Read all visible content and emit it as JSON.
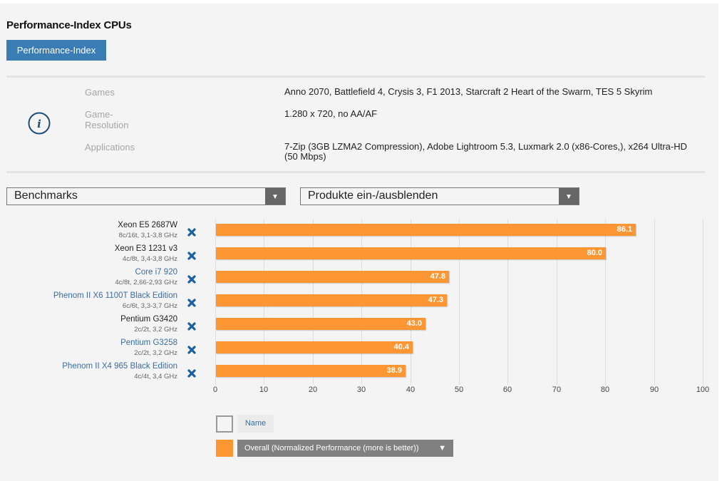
{
  "header": {
    "title": "Performance-Index CPUs",
    "tab_button": "Performance-Index"
  },
  "info": {
    "icon": "info-icon",
    "rows": [
      {
        "label": "Games",
        "value": "Anno 2070, Battlefield 4, Crysis 3, F1 2013, Starcraft 2 Heart of the Swarm, TES 5 Skyrim"
      },
      {
        "label": "Game-\nResolution",
        "label_line1": "Game-",
        "label_line2": "Resolution",
        "value": "1.280 x 720, no AA/AF"
      },
      {
        "label": "Applications",
        "value": "7-Zip (3GB LZMA2 Compression), Adobe Lightroom 5.3, Luxmark 2.0 (x86-Cores,), x264 Ultra-HD (50 Mbps)"
      }
    ]
  },
  "filters": {
    "benchmarks": {
      "selected": "Benchmarks",
      "icon": "triangle-down-icon"
    },
    "products": {
      "selected": "Produkte ein-/ausblenden",
      "icon": "triangle-down-icon"
    }
  },
  "products": [
    {
      "name": "Xeon E5 2687W",
      "spec": "8c/16t, 3,1-3,8 GHz",
      "link": false
    },
    {
      "name": "Xeon E3 1231 v3",
      "spec": "4c/8t, 3,4-3,8 GHz",
      "link": false
    },
    {
      "name": "Core i7 920",
      "spec": "4c/8t, 2,66-2,93 GHz",
      "link": true
    },
    {
      "name": "Phenom II X6 1100T Black Edition",
      "spec": "6c/6t, 3,3-3,7 GHz",
      "link": true
    },
    {
      "name": "Pentium G3420",
      "spec": "2c/2t, 3,2 GHz",
      "link": false
    },
    {
      "name": "Pentium G3258",
      "spec": "2c/2t, 3,2 GHz",
      "link": true
    },
    {
      "name": "Phenom II X4 965 Black Edition",
      "spec": "4c/4t, 3,4 GHz",
      "link": true
    }
  ],
  "remove_icon": "close-x-icon",
  "colors": {
    "bar": "#fd9633",
    "accent_button": "#3a7db5",
    "link": "#3a6ea5",
    "remove_icon": "#1a5fa0",
    "info_icon": "#1f4e79"
  },
  "legend": {
    "name_label": "Name",
    "series_label": "Overall (Normalized Performance (more is better))",
    "series_arrow": "▼"
  },
  "chart_data": {
    "type": "bar",
    "orientation": "horizontal",
    "title": "",
    "categories": [
      "Xeon E5 2687W",
      "Xeon E3 1231 v3",
      "Core i7 920",
      "Phenom II X6 1100T Black Edition",
      "Pentium G3420",
      "Pentium G3258",
      "Phenom II X4 965 Black Edition"
    ],
    "series": [
      {
        "name": "Overall (Normalized Performance (more is better))",
        "values": [
          86.1,
          80.0,
          47.8,
          47.3,
          43.0,
          40.4,
          38.9
        ]
      }
    ],
    "value_labels": [
      "86.1",
      "80.0",
      "47.8",
      "47.3",
      "43.0",
      "40.4",
      "38.9"
    ],
    "xlabel": "",
    "ylabel": "",
    "xlim": [
      0,
      100
    ],
    "xticks": [
      0,
      10,
      20,
      30,
      40,
      50,
      60,
      70,
      80,
      90,
      100
    ],
    "grid": true,
    "legend": "bottom-left"
  }
}
